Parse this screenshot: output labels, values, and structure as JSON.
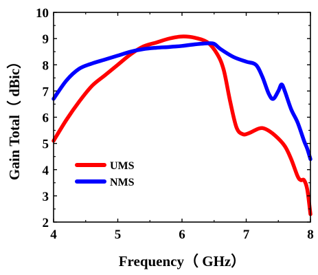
{
  "chart_data": {
    "type": "line",
    "xlabel": "Frequency（ GHz）",
    "ylabel": "Gain Total（ dBic）",
    "xlim": [
      4,
      8
    ],
    "ylim": [
      2,
      10
    ],
    "xticks": [
      "4",
      "5",
      "6",
      "7",
      "8"
    ],
    "yticks": [
      "2",
      "3",
      "4",
      "5",
      "6",
      "7",
      "8",
      "9",
      "10"
    ],
    "legend_position": "lower-left",
    "grid": false,
    "series": [
      {
        "name": "UMS",
        "color": "#ff0000",
        "points": [
          [
            4.0,
            5.1
          ],
          [
            4.2,
            5.9
          ],
          [
            4.4,
            6.6
          ],
          [
            4.6,
            7.2
          ],
          [
            4.8,
            7.6
          ],
          [
            5.0,
            8.0
          ],
          [
            5.2,
            8.4
          ],
          [
            5.4,
            8.7
          ],
          [
            5.6,
            8.85
          ],
          [
            5.8,
            9.0
          ],
          [
            6.0,
            9.08
          ],
          [
            6.2,
            9.03
          ],
          [
            6.4,
            8.85
          ],
          [
            6.55,
            8.4
          ],
          [
            6.65,
            7.8
          ],
          [
            6.75,
            6.6
          ],
          [
            6.85,
            5.6
          ],
          [
            6.95,
            5.35
          ],
          [
            7.05,
            5.4
          ],
          [
            7.2,
            5.57
          ],
          [
            7.3,
            5.55
          ],
          [
            7.45,
            5.3
          ],
          [
            7.6,
            4.9
          ],
          [
            7.7,
            4.4
          ],
          [
            7.8,
            3.75
          ],
          [
            7.85,
            3.6
          ],
          [
            7.9,
            3.6
          ],
          [
            7.95,
            3.25
          ],
          [
            8.0,
            2.3
          ]
        ]
      },
      {
        "name": "NMS",
        "color": "#0000ff",
        "points": [
          [
            4.0,
            6.7
          ],
          [
            4.2,
            7.4
          ],
          [
            4.4,
            7.85
          ],
          [
            4.6,
            8.05
          ],
          [
            4.8,
            8.2
          ],
          [
            5.0,
            8.35
          ],
          [
            5.2,
            8.5
          ],
          [
            5.4,
            8.6
          ],
          [
            5.6,
            8.65
          ],
          [
            5.8,
            8.68
          ],
          [
            6.0,
            8.72
          ],
          [
            6.2,
            8.78
          ],
          [
            6.4,
            8.82
          ],
          [
            6.5,
            8.8
          ],
          [
            6.6,
            8.6
          ],
          [
            6.8,
            8.3
          ],
          [
            7.0,
            8.12
          ],
          [
            7.15,
            8.0
          ],
          [
            7.25,
            7.55
          ],
          [
            7.35,
            6.9
          ],
          [
            7.42,
            6.7
          ],
          [
            7.5,
            7.0
          ],
          [
            7.55,
            7.25
          ],
          [
            7.6,
            7.0
          ],
          [
            7.7,
            6.3
          ],
          [
            7.8,
            5.8
          ],
          [
            7.9,
            5.1
          ],
          [
            7.95,
            4.8
          ],
          [
            8.0,
            4.4
          ]
        ]
      }
    ]
  }
}
